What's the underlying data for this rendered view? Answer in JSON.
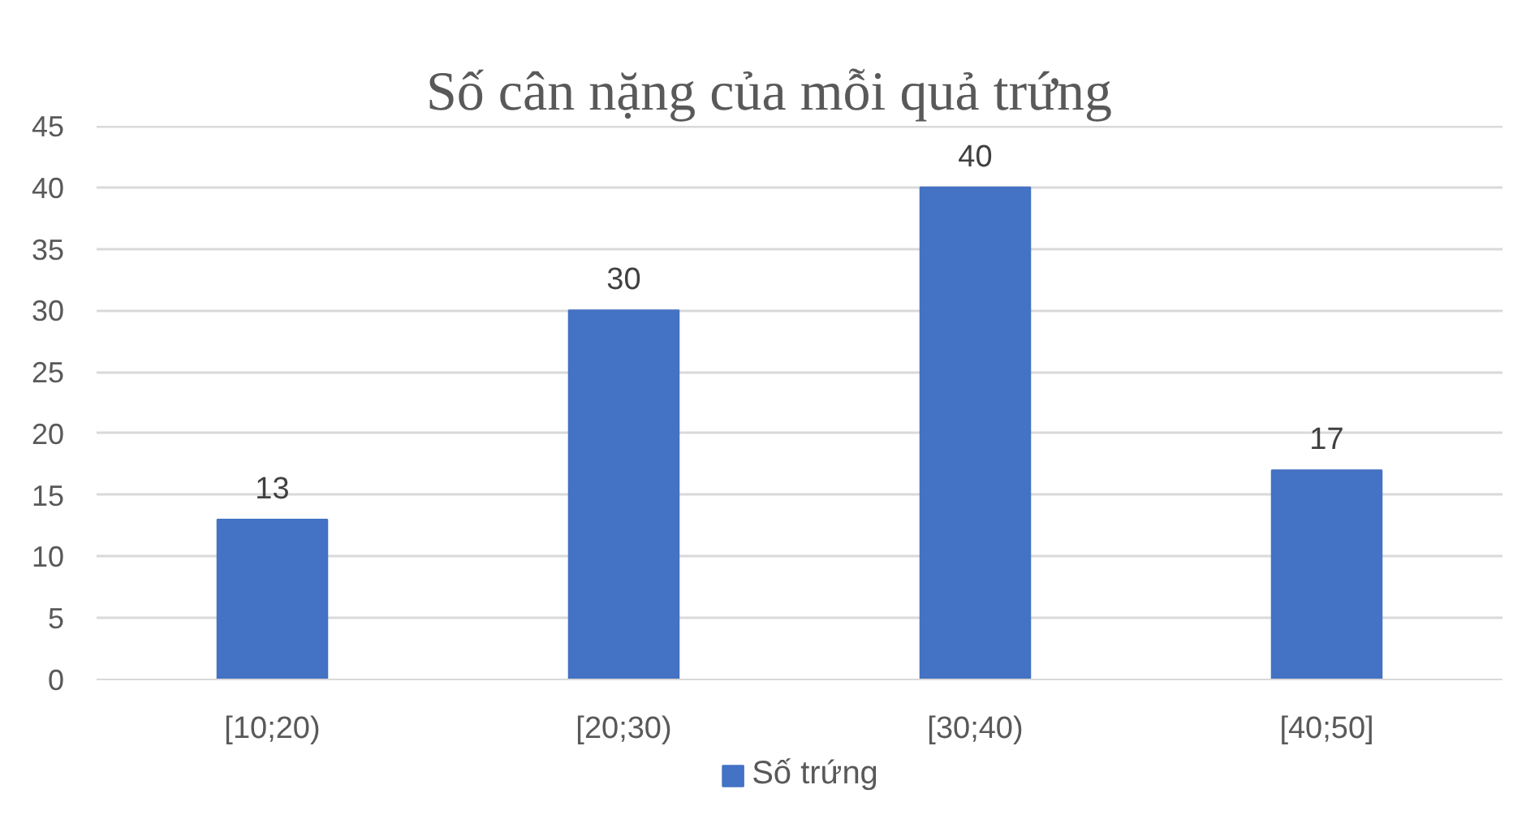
{
  "chart_data": {
    "type": "bar",
    "title": "Số cân nặng của mỗi quả trứng",
    "categories": [
      "[10;20)",
      "[20;30)",
      "[30;40)",
      "[40;50]"
    ],
    "series": [
      {
        "name": "Số trứng",
        "color": "#4472c4",
        "values": [
          13,
          30,
          40,
          17
        ]
      }
    ],
    "ylim": [
      0,
      45
    ],
    "yticks": [
      0,
      5,
      10,
      15,
      20,
      25,
      30,
      35,
      40,
      45
    ],
    "grid": "y",
    "legend": "bottom",
    "data_labels": true
  }
}
